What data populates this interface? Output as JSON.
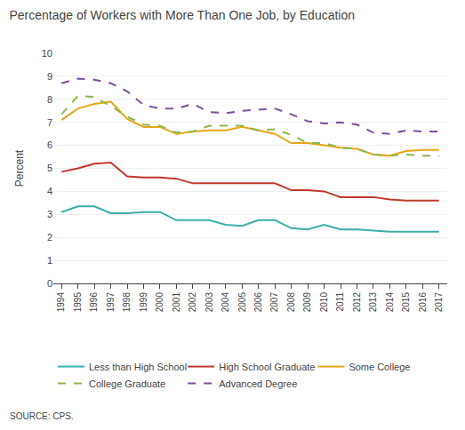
{
  "chart_data": {
    "type": "line",
    "title": "Percentage of Workers with More Than One Job, by Education",
    "y_label": "Percent",
    "source": "SOURCE: CPS.",
    "x": [
      1994,
      1995,
      1996,
      1997,
      1998,
      1999,
      2000,
      2001,
      2002,
      2003,
      2004,
      2005,
      2006,
      2007,
      2008,
      2009,
      2010,
      2011,
      2012,
      2013,
      2014,
      2015,
      2016,
      2017
    ],
    "xlim": [
      1993.5,
      2017.5
    ],
    "xticks": [
      1994,
      1995,
      1996,
      1997,
      1998,
      1999,
      2000,
      2001,
      2002,
      2003,
      2004,
      2005,
      2006,
      2007,
      2008,
      2009,
      2010,
      2011,
      2012,
      2013,
      2014,
      2015,
      2016,
      2017
    ],
    "ylim": [
      0,
      10
    ],
    "yticks": [
      0,
      1,
      2,
      3,
      4,
      5,
      6,
      7,
      8,
      9,
      10
    ],
    "grid": "y",
    "legend": "bottom",
    "series": [
      {
        "name": "Less than High School",
        "color": "#3aafa9",
        "line_style": "solid",
        "values": [
          3.1,
          3.35,
          3.35,
          3.05,
          3.05,
          3.1,
          3.1,
          2.75,
          2.75,
          2.75,
          2.55,
          2.5,
          2.75,
          2.75,
          2.4,
          2.35,
          2.55,
          2.35,
          2.35,
          2.3,
          2.25,
          2.25,
          2.25,
          2.25
        ]
      },
      {
        "name": "High School Graduate",
        "color": "#c0392b",
        "line_style": "solid",
        "values": [
          4.85,
          5.0,
          5.2,
          5.25,
          4.65,
          4.6,
          4.6,
          4.55,
          4.35,
          4.35,
          4.35,
          4.35,
          4.35,
          4.35,
          4.05,
          4.05,
          4.0,
          3.75,
          3.75,
          3.75,
          3.65,
          3.6,
          3.6,
          3.6
        ]
      },
      {
        "name": "Some College",
        "color": "#e6a817",
        "line_style": "solid",
        "values": [
          7.1,
          7.6,
          7.8,
          7.9,
          7.15,
          6.8,
          6.8,
          6.5,
          6.6,
          6.65,
          6.65,
          6.8,
          6.65,
          6.5,
          6.1,
          6.1,
          6.0,
          5.9,
          5.85,
          5.6,
          5.55,
          5.75,
          5.8,
          5.8
        ]
      },
      {
        "name": "College Graduate",
        "color": "#8db84a",
        "line_style": "dashed",
        "values": [
          7.35,
          8.15,
          8.1,
          7.7,
          7.25,
          6.9,
          6.85,
          6.55,
          6.6,
          6.85,
          6.85,
          6.85,
          6.65,
          6.7,
          6.45,
          6.1,
          6.1,
          5.9,
          5.85,
          5.6,
          5.55,
          5.6,
          5.55,
          5.55
        ]
      },
      {
        "name": "Advanced Degree",
        "color": "#7b4f9e",
        "line_style": "dashed",
        "values": [
          8.7,
          8.9,
          8.85,
          8.7,
          8.35,
          7.75,
          7.6,
          7.6,
          7.8,
          7.45,
          7.4,
          7.5,
          7.55,
          7.6,
          7.35,
          7.05,
          6.95,
          7.0,
          6.9,
          6.55,
          6.5,
          6.65,
          6.6,
          6.6
        ]
      }
    ]
  }
}
